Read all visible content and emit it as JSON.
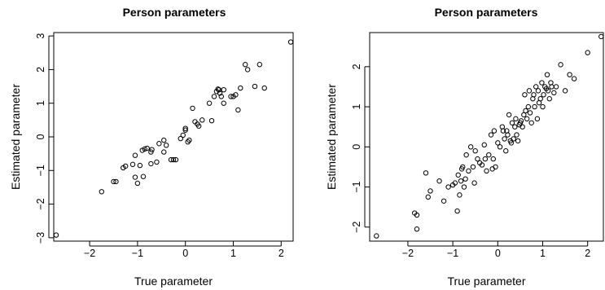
{
  "chart_data": [
    {
      "type": "scatter",
      "title": "Person parameters",
      "xlabel": "True parameter",
      "ylabel": "Estimated parameter",
      "xlim": [
        -2.75,
        2.25
      ],
      "ylim": [
        -3.1,
        3.1
      ],
      "xticks": [
        -2,
        -1,
        0,
        1,
        2
      ],
      "yticks": [
        -3,
        -2,
        -1,
        0,
        1,
        2,
        3
      ],
      "grid": false,
      "legend": "none",
      "points": [
        [
          -2.7,
          -2.92
        ],
        [
          -1.75,
          -1.63
        ],
        [
          -1.5,
          -1.33
        ],
        [
          -1.45,
          -1.33
        ],
        [
          -1.3,
          -0.92
        ],
        [
          -1.25,
          -0.87
        ],
        [
          -1.1,
          -0.82
        ],
        [
          -1.05,
          -0.55
        ],
        [
          -1.05,
          -1.2
        ],
        [
          -1.0,
          -1.38
        ],
        [
          -0.95,
          -0.85
        ],
        [
          -0.9,
          -0.4
        ],
        [
          -0.88,
          -1.18
        ],
        [
          -0.85,
          -0.36
        ],
        [
          -0.8,
          -0.34
        ],
        [
          -0.72,
          -0.45
        ],
        [
          -0.72,
          -0.8
        ],
        [
          -0.7,
          -0.38
        ],
        [
          -0.6,
          -0.75
        ],
        [
          -0.55,
          -0.2
        ],
        [
          -0.45,
          -0.1
        ],
        [
          -0.45,
          -0.45
        ],
        [
          -0.4,
          -0.25
        ],
        [
          -0.3,
          -0.68
        ],
        [
          -0.25,
          -0.68
        ],
        [
          -0.2,
          -0.68
        ],
        [
          -0.1,
          -0.05
        ],
        [
          -0.05,
          0.05
        ],
        [
          0.0,
          0.2
        ],
        [
          0.0,
          0.25
        ],
        [
          0.05,
          -0.15
        ],
        [
          0.08,
          -0.1
        ],
        [
          0.15,
          0.85
        ],
        [
          0.2,
          0.45
        ],
        [
          0.25,
          0.38
        ],
        [
          0.28,
          0.32
        ],
        [
          0.35,
          0.5
        ],
        [
          0.5,
          1.0
        ],
        [
          0.55,
          0.48
        ],
        [
          0.6,
          1.2
        ],
        [
          0.65,
          1.35
        ],
        [
          0.68,
          1.42
        ],
        [
          0.7,
          1.4
        ],
        [
          0.72,
          1.3
        ],
        [
          0.75,
          1.2
        ],
        [
          0.8,
          1.4
        ],
        [
          0.8,
          1.0
        ],
        [
          0.95,
          1.2
        ],
        [
          1.0,
          1.2
        ],
        [
          1.05,
          1.25
        ],
        [
          1.1,
          0.8
        ],
        [
          1.15,
          1.45
        ],
        [
          1.25,
          2.15
        ],
        [
          1.3,
          2.0
        ],
        [
          1.45,
          1.5
        ],
        [
          1.55,
          2.15
        ],
        [
          1.65,
          1.45
        ],
        [
          2.2,
          2.82
        ]
      ]
    },
    {
      "type": "scatter",
      "title": "Person parameters",
      "xlabel": "True parameter",
      "ylabel": "Estimated parameter",
      "xlim": [
        -2.85,
        2.35
      ],
      "ylim": [
        -2.35,
        2.85
      ],
      "xticks": [
        -2,
        -1,
        0,
        1,
        2
      ],
      "yticks": [
        -2,
        -1,
        0,
        1,
        2
      ],
      "grid": false,
      "legend": "none",
      "points": [
        [
          -2.7,
          -2.22
        ],
        [
          -1.85,
          -1.65
        ],
        [
          -1.8,
          -1.7
        ],
        [
          -1.8,
          -2.05
        ],
        [
          -1.6,
          -0.65
        ],
        [
          -1.55,
          -1.25
        ],
        [
          -1.5,
          -1.1
        ],
        [
          -1.3,
          -0.85
        ],
        [
          -1.2,
          -1.35
        ],
        [
          -1.1,
          -1.0
        ],
        [
          -1.0,
          -0.95
        ],
        [
          -0.95,
          -0.9
        ],
        [
          -0.9,
          -1.6
        ],
        [
          -0.88,
          -0.7
        ],
        [
          -0.85,
          -1.2
        ],
        [
          -0.82,
          -0.85
        ],
        [
          -0.8,
          -0.55
        ],
        [
          -0.78,
          -0.5
        ],
        [
          -0.75,
          -1.0
        ],
        [
          -0.72,
          -0.8
        ],
        [
          -0.7,
          -0.2
        ],
        [
          -0.65,
          -0.6
        ],
        [
          -0.6,
          0.0
        ],
        [
          -0.55,
          -0.5
        ],
        [
          -0.52,
          -0.9
        ],
        [
          -0.5,
          -0.1
        ],
        [
          -0.45,
          -0.3
        ],
        [
          -0.4,
          -0.4
        ],
        [
          -0.35,
          -0.45
        ],
        [
          -0.3,
          0.05
        ],
        [
          -0.28,
          -0.3
        ],
        [
          -0.25,
          -0.6
        ],
        [
          -0.2,
          -0.2
        ],
        [
          -0.15,
          0.3
        ],
        [
          -0.12,
          -0.55
        ],
        [
          -0.1,
          -0.3
        ],
        [
          -0.08,
          0.4
        ],
        [
          -0.05,
          -0.5
        ],
        [
          0.0,
          0.1
        ],
        [
          0.05,
          0.0
        ],
        [
          0.1,
          0.5
        ],
        [
          0.12,
          0.4
        ],
        [
          0.15,
          0.2
        ],
        [
          0.18,
          -0.1
        ],
        [
          0.2,
          0.4
        ],
        [
          0.22,
          0.3
        ],
        [
          0.25,
          0.8
        ],
        [
          0.28,
          0.15
        ],
        [
          0.3,
          0.1
        ],
        [
          0.32,
          0.6
        ],
        [
          0.35,
          0.2
        ],
        [
          0.38,
          0.5
        ],
        [
          0.4,
          0.7
        ],
        [
          0.42,
          0.3
        ],
        [
          0.45,
          0.15
        ],
        [
          0.48,
          0.55
        ],
        [
          0.5,
          0.6
        ],
        [
          0.52,
          0.65
        ],
        [
          0.55,
          0.5
        ],
        [
          0.58,
          0.8
        ],
        [
          0.6,
          1.3
        ],
        [
          0.62,
          0.9
        ],
        [
          0.65,
          0.7
        ],
        [
          0.68,
          1.0
        ],
        [
          0.7,
          1.4
        ],
        [
          0.72,
          0.85
        ],
        [
          0.75,
          0.6
        ],
        [
          0.78,
          1.2
        ],
        [
          0.8,
          1.3
        ],
        [
          0.82,
          1.0
        ],
        [
          0.85,
          1.5
        ],
        [
          0.88,
          0.7
        ],
        [
          0.9,
          1.4
        ],
        [
          0.92,
          1.1
        ],
        [
          0.95,
          1.2
        ],
        [
          0.98,
          1.6
        ],
        [
          1.0,
          1.0
        ],
        [
          1.02,
          1.3
        ],
        [
          1.05,
          1.5
        ],
        [
          1.08,
          1.45
        ],
        [
          1.1,
          1.8
        ],
        [
          1.12,
          1.4
        ],
        [
          1.15,
          1.2
        ],
        [
          1.18,
          1.6
        ],
        [
          1.2,
          1.5
        ],
        [
          1.25,
          1.35
        ],
        [
          1.3,
          1.5
        ],
        [
          1.4,
          2.05
        ],
        [
          1.5,
          1.4
        ],
        [
          1.6,
          1.8
        ],
        [
          1.7,
          1.7
        ],
        [
          2.0,
          2.35
        ],
        [
          2.3,
          2.75
        ]
      ]
    }
  ]
}
